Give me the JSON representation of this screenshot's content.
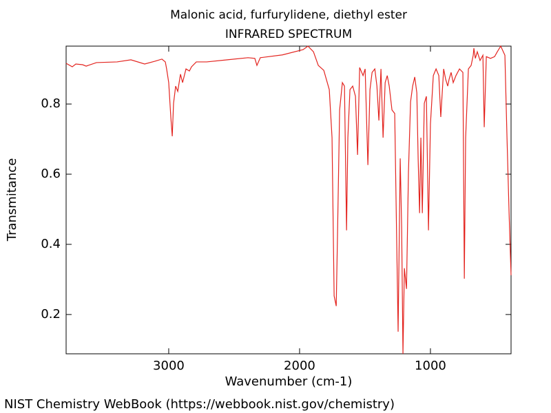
{
  "chart_data": {
    "type": "line",
    "title": "Malonic acid, furfurylidene, diethyl ester",
    "subtitle": "INFRARED SPECTRUM",
    "xlabel": "Wavenumber (cm-1)",
    "ylabel": "Transmitance",
    "color": "#e3231e",
    "xlim": [
      3784,
      384
    ],
    "ylim": [
      0.088,
      0.965
    ],
    "xticks": [
      3000,
      2000,
      1000
    ],
    "yticks": [
      0.2,
      0.4,
      0.6,
      0.8
    ],
    "x": [
      3784,
      3737,
      3710,
      3658,
      3631,
      3552,
      3395,
      3289,
      3184,
      3105,
      3052,
      3026,
      3016,
      3000,
      2984,
      2973,
      2963,
      2947,
      2931,
      2910,
      2894,
      2868,
      2842,
      2826,
      2789,
      2710,
      2552,
      2394,
      2342,
      2326,
      2300,
      2131,
      1973,
      1936,
      1894,
      1857,
      1815,
      1773,
      1752,
      1736,
      1720,
      1710,
      1694,
      1673,
      1657,
      1641,
      1631,
      1615,
      1594,
      1573,
      1557,
      1541,
      1515,
      1499,
      1478,
      1462,
      1446,
      1425,
      1409,
      1394,
      1378,
      1362,
      1346,
      1330,
      1315,
      1294,
      1273,
      1262,
      1247,
      1231,
      1220,
      1210,
      1199,
      1183,
      1168,
      1152,
      1136,
      1120,
      1104,
      1094,
      1083,
      1073,
      1062,
      1047,
      1031,
      1015,
      1000,
      978,
      957,
      936,
      921,
      899,
      884,
      868,
      857,
      842,
      826,
      805,
      778,
      752,
      741,
      731,
      710,
      689,
      673,
      668,
      657,
      642,
      621,
      599,
      589,
      573,
      541,
      510,
      489,
      463,
      431,
      415,
      399,
      384
    ],
    "values": [
      0.916,
      0.906,
      0.914,
      0.912,
      0.908,
      0.918,
      0.92,
      0.926,
      0.914,
      0.922,
      0.928,
      0.92,
      0.9,
      0.861,
      0.763,
      0.708,
      0.802,
      0.851,
      0.836,
      0.885,
      0.861,
      0.9,
      0.894,
      0.906,
      0.92,
      0.92,
      0.926,
      0.932,
      0.93,
      0.91,
      0.932,
      0.94,
      0.955,
      0.965,
      0.949,
      0.91,
      0.896,
      0.841,
      0.704,
      0.253,
      0.224,
      0.43,
      0.783,
      0.861,
      0.851,
      0.44,
      0.704,
      0.841,
      0.851,
      0.822,
      0.655,
      0.904,
      0.881,
      0.9,
      0.626,
      0.841,
      0.89,
      0.9,
      0.851,
      0.753,
      0.9,
      0.704,
      0.861,
      0.881,
      0.851,
      0.783,
      0.773,
      0.508,
      0.151,
      0.645,
      0.449,
      0.088,
      0.332,
      0.273,
      0.606,
      0.806,
      0.851,
      0.877,
      0.832,
      0.645,
      0.489,
      0.704,
      0.489,
      0.802,
      0.822,
      0.44,
      0.743,
      0.881,
      0.9,
      0.881,
      0.763,
      0.9,
      0.871,
      0.851,
      0.871,
      0.89,
      0.861,
      0.881,
      0.9,
      0.89,
      0.302,
      0.704,
      0.9,
      0.91,
      0.939,
      0.959,
      0.93,
      0.949,
      0.924,
      0.939,
      0.734,
      0.935,
      0.93,
      0.935,
      0.949,
      0.965,
      0.939,
      0.704,
      0.489,
      0.312
    ]
  },
  "footer": "NIST Chemistry WebBook (https://webbook.nist.gov/chemistry)"
}
